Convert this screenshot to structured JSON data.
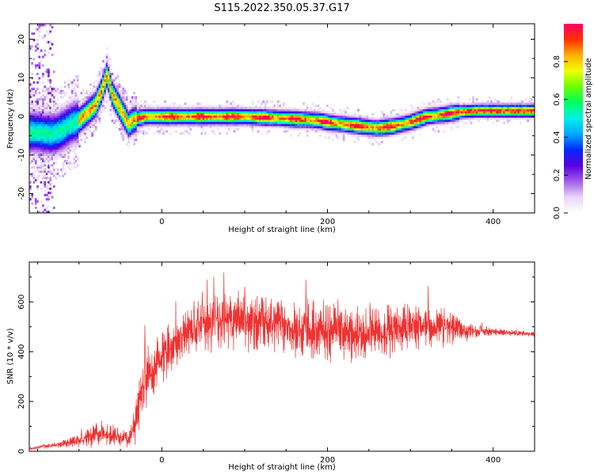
{
  "title": "S115.2022.350.05.37.G17",
  "chart_data": [
    {
      "type": "heatmap",
      "xlabel": "Height of straight line (km)",
      "ylabel": "Frequency (Hz)",
      "xlim": [
        -160,
        450
      ],
      "ylim": [
        -25,
        24
      ],
      "xticks": [
        "0",
        "200",
        "400"
      ],
      "yticks": [
        "-20",
        "-10",
        "0",
        "10",
        "20"
      ],
      "colorbar": {
        "label": "Normalized spectral amplitude",
        "range": [
          0,
          1
        ],
        "ticks": [
          "0.0",
          "0.2",
          "0.4",
          "0.6",
          "0.8"
        ],
        "colors": [
          "#ffffff",
          "#e9d6f7",
          "#a25ee8",
          "#5a00e0",
          "#0028ff",
          "#00a8ff",
          "#00f0e8",
          "#00ff60",
          "#6aff00",
          "#f0ff00",
          "#ffb000",
          "#ff3000",
          "#ff006a"
        ]
      },
      "ridge": {
        "x": [
          -150,
          -140,
          -130,
          -120,
          -110,
          -100,
          -90,
          -80,
          -72,
          -66,
          -60,
          -55,
          -50,
          -45,
          -40,
          -35,
          -30,
          -20,
          0,
          50,
          100,
          150,
          190,
          200,
          220,
          240,
          260,
          280,
          300,
          320,
          340,
          360,
          380,
          400,
          420,
          450
        ],
        "y": [
          -4,
          -4.5,
          -4.5,
          -3.5,
          -2,
          -1,
          1,
          3,
          7,
          11,
          6,
          4,
          2,
          0,
          -2,
          -1,
          -0.5,
          0,
          0,
          0,
          0,
          -0.5,
          -1,
          -1.5,
          -2,
          -2.5,
          -3,
          -2.5,
          -1.5,
          0,
          0.5,
          1.2,
          1.5,
          1.5,
          1.5,
          1.5
        ]
      }
    },
    {
      "type": "line",
      "xlabel": "Height of straight line (km)",
      "ylabel": "SNR (10 * v/v)",
      "xlim": [
        -160,
        450
      ],
      "ylim": [
        0,
        760
      ],
      "xticks": [
        "0",
        "200",
        "400"
      ],
      "yticks": [
        "0",
        "200",
        "400",
        "600"
      ],
      "series": [
        {
          "color": "#f03232",
          "envelope_x": [
            -160,
            -140,
            -120,
            -100,
            -80,
            -60,
            -40,
            -30,
            -20,
            -10,
            0,
            20,
            40,
            60,
            100,
            150,
            200,
            250,
            300,
            350,
            380,
            400,
            450
          ],
          "mean": [
            10,
            20,
            30,
            45,
            70,
            60,
            50,
            150,
            300,
            330,
            380,
            450,
            500,
            520,
            520,
            500,
            480,
            470,
            500,
            500,
            480,
            480,
            470
          ],
          "spread": [
            4,
            8,
            15,
            30,
            50,
            40,
            30,
            110,
            140,
            120,
            100,
            90,
            110,
            110,
            110,
            110,
            110,
            110,
            100,
            70,
            25,
            15,
            10
          ]
        }
      ]
    }
  ]
}
